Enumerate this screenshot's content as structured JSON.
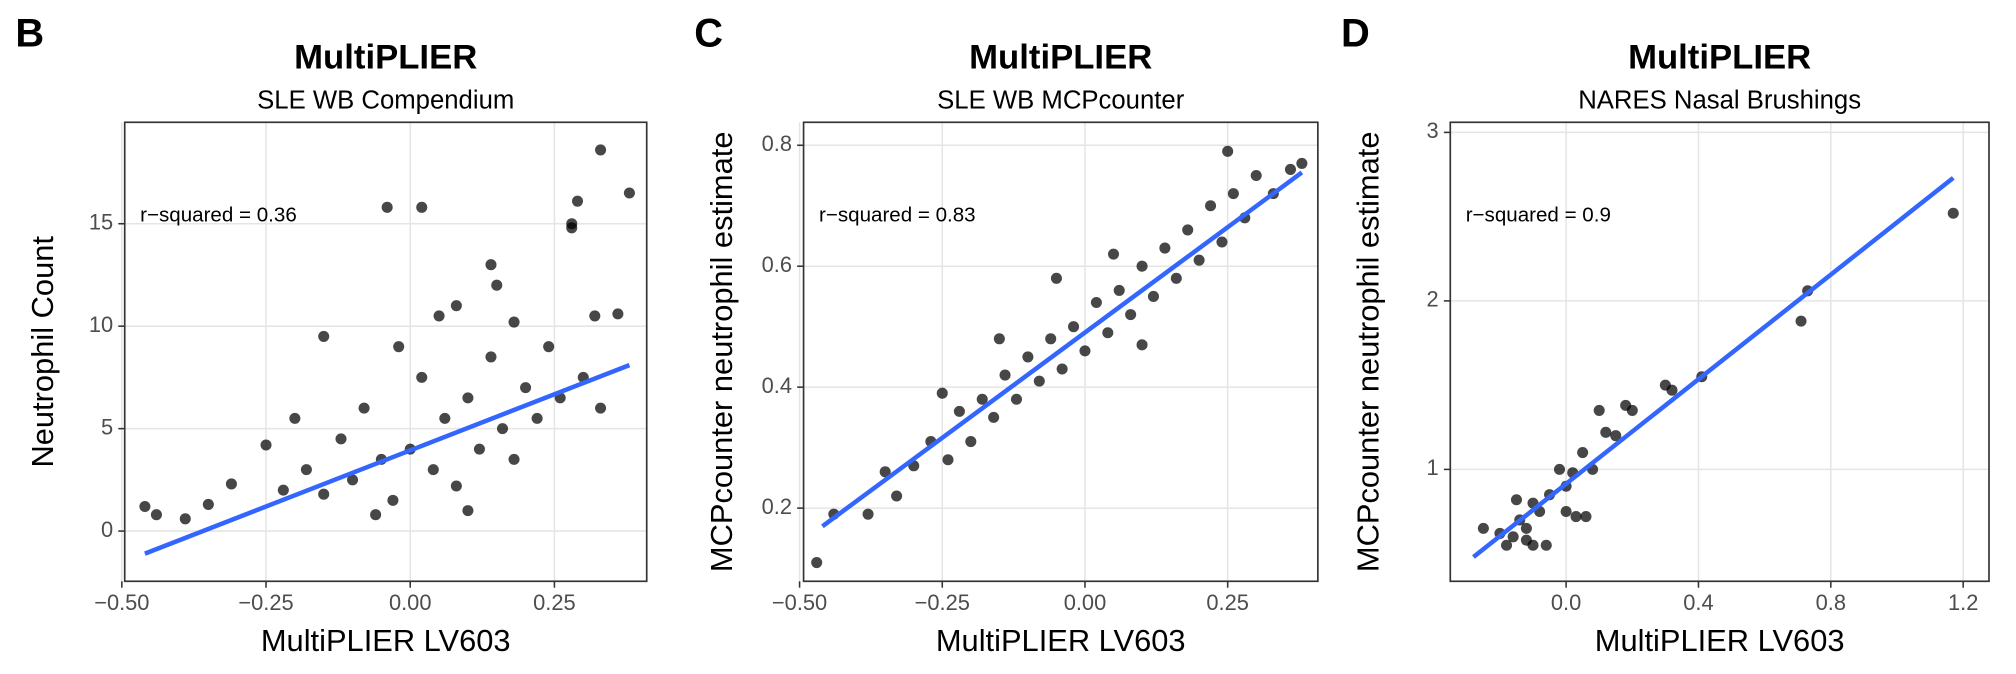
{
  "chart_data": [
    {
      "type": "scatter",
      "panel": "B",
      "title": "MultiPLIER",
      "subtitle": "SLE WB Compendium",
      "annotation": "r−squared = 0.36",
      "xlabel": "MultiPLIER LV603",
      "ylabel": "Neutrophil Count",
      "xlim": [
        -0.495,
        0.41
      ],
      "ylim": [
        -2.45,
        19.95
      ],
      "xticks": [
        {
          "value": -0.5,
          "label": "−0.50"
        },
        {
          "value": -0.25,
          "label": "−0.25"
        },
        {
          "value": 0,
          "label": "0.00"
        },
        {
          "value": 0.25,
          "label": "0.25"
        }
      ],
      "yticks": [
        0,
        5,
        10,
        15
      ],
      "grid": true,
      "point_color": "#000000",
      "fit_color": "#3366ff",
      "points": {
        "x": [
          0.33,
          0.38,
          0.29,
          -0.04,
          0.02,
          0.28,
          0.28,
          0.14,
          0.15,
          0.36,
          0.32,
          -0.15,
          -0.46,
          -0.44,
          -0.39,
          -0.35,
          -0.31,
          -0.25,
          -0.22,
          -0.18,
          -0.15,
          -0.12,
          -0.1,
          -0.08,
          -0.05,
          -0.03,
          0.0,
          0.02,
          0.04,
          0.06,
          0.08,
          0.1,
          0.12,
          0.14,
          0.16,
          0.18,
          0.2,
          0.22,
          0.24,
          0.26,
          0.3,
          0.33,
          -0.2,
          -0.02,
          0.05,
          0.1,
          -0.06,
          0.18,
          0.08
        ],
        "y": [
          18.6,
          16.5,
          16.1,
          15.8,
          15.8,
          15.0,
          14.8,
          13.0,
          12.0,
          10.6,
          10.5,
          9.5,
          1.2,
          0.8,
          0.6,
          1.3,
          2.3,
          4.2,
          2.0,
          3.0,
          1.8,
          4.5,
          2.5,
          6.0,
          3.5,
          1.5,
          4.0,
          7.5,
          3.0,
          5.5,
          2.2,
          6.5,
          4.0,
          8.5,
          5.0,
          3.5,
          7.0,
          5.5,
          9.0,
          6.5,
          7.5,
          6.0,
          5.5,
          9.0,
          10.5,
          1.0,
          0.8,
          10.2,
          11.0
        ]
      },
      "fit": {
        "x": [
          -0.46,
          0.38
        ],
        "y": [
          -1.1,
          8.1
        ]
      }
    },
    {
      "type": "scatter",
      "panel": "C",
      "title": "MultiPLIER",
      "subtitle": "SLE WB MCPcounter",
      "annotation": "r−squared = 0.83",
      "xlabel": "MultiPLIER LV603",
      "ylabel": "MCPcounter neutrophil estimate",
      "xlim": [
        -0.493,
        0.408
      ],
      "ylim": [
        0.079,
        0.838
      ],
      "xticks": [
        {
          "value": -0.5,
          "label": "−0.50"
        },
        {
          "value": -0.25,
          "label": "−0.25"
        },
        {
          "value": 0,
          "label": "0.00"
        },
        {
          "value": 0.25,
          "label": "0.25"
        }
      ],
      "yticks": [
        0.2,
        0.4,
        0.6,
        0.8
      ],
      "grid": true,
      "point_color": "#000000",
      "fit_color": "#3366ff",
      "points": {
        "x": [
          -0.47,
          -0.44,
          -0.38,
          -0.35,
          -0.33,
          -0.3,
          -0.27,
          -0.24,
          -0.22,
          -0.2,
          -0.18,
          -0.16,
          -0.14,
          -0.12,
          -0.1,
          -0.08,
          -0.06,
          -0.04,
          -0.02,
          0.0,
          0.02,
          0.04,
          0.06,
          0.08,
          0.1,
          0.12,
          0.14,
          0.16,
          0.18,
          0.2,
          0.22,
          0.24,
          0.26,
          0.28,
          0.3,
          0.33,
          0.36,
          0.38,
          0.25,
          -0.05,
          0.1,
          -0.15,
          0.05,
          -0.25
        ],
        "y": [
          0.11,
          0.19,
          0.19,
          0.26,
          0.22,
          0.27,
          0.31,
          0.28,
          0.36,
          0.31,
          0.38,
          0.35,
          0.42,
          0.38,
          0.45,
          0.41,
          0.48,
          0.43,
          0.5,
          0.46,
          0.54,
          0.49,
          0.56,
          0.52,
          0.6,
          0.55,
          0.63,
          0.58,
          0.66,
          0.61,
          0.7,
          0.64,
          0.72,
          0.68,
          0.75,
          0.72,
          0.76,
          0.77,
          0.79,
          0.58,
          0.47,
          0.48,
          0.62,
          0.39
        ]
      },
      "fit": {
        "x": [
          -0.46,
          0.38
        ],
        "y": [
          0.17,
          0.755
        ]
      }
    },
    {
      "type": "scatter",
      "panel": "D",
      "title": "MultiPLIER",
      "subtitle": "NARES Nasal Brushings",
      "annotation": "r−squared = 0.9",
      "xlabel": "MultiPLIER LV603",
      "ylabel": "MCPcounter neutrophil estimate",
      "xlim": [
        -0.35,
        1.278
      ],
      "ylim": [
        0.336,
        3.06
      ],
      "xticks": [
        {
          "value": 0,
          "label": "0.0"
        },
        0.4,
        0.8,
        1.2
      ],
      "yticks": [
        1,
        2,
        3
      ],
      "grid": true,
      "point_color": "#000000",
      "fit_color": "#3366ff",
      "points": {
        "x": [
          1.17,
          0.73,
          0.71,
          0.41,
          0.3,
          0.32,
          0.2,
          0.18,
          0.12,
          0.1,
          0.05,
          0.02,
          0.0,
          -0.02,
          -0.05,
          -0.08,
          -0.1,
          -0.12,
          -0.14,
          -0.16,
          -0.18,
          -0.2,
          -0.25,
          -0.1,
          -0.06,
          0.06,
          0.03,
          -0.15,
          0.08,
          0.15,
          0.0,
          -0.12
        ],
        "y": [
          2.52,
          2.06,
          1.88,
          1.55,
          1.5,
          1.47,
          1.35,
          1.38,
          1.22,
          1.35,
          1.1,
          0.98,
          0.9,
          1.0,
          0.85,
          0.75,
          0.8,
          0.65,
          0.7,
          0.6,
          0.55,
          0.62,
          0.65,
          0.55,
          0.55,
          0.72,
          0.72,
          0.82,
          1.0,
          1.2,
          0.75,
          0.58
        ]
      },
      "fit": {
        "x": [
          -0.28,
          1.17
        ],
        "y": [
          0.48,
          2.73
        ]
      }
    }
  ]
}
